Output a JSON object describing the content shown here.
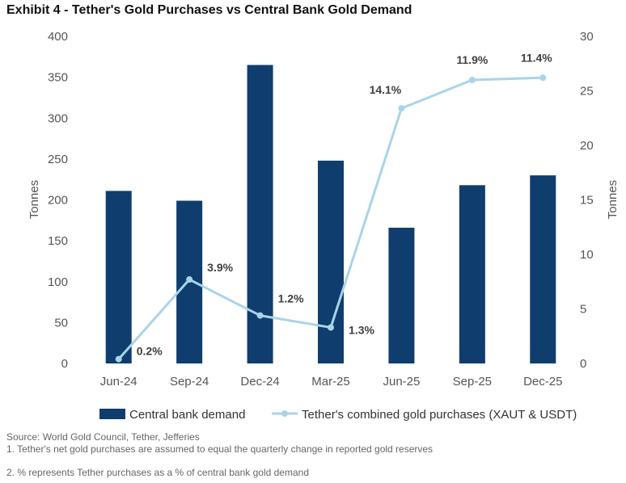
{
  "title": "Exhibit 4 - Tether's Gold Purchases vs Central Bank Gold Demand",
  "notes": {
    "source": "Source: World Gold Council, Tether, Jefferies",
    "note1": "1. Tether's net gold purchases are assumed to equal the quarterly change in reported gold reserves",
    "note2": "2. % represents Tether purchases as a % of central bank gold demand"
  },
  "colors": {
    "bar": "#0f3d6e",
    "line": "#a9d4e8"
  },
  "chart_data": {
    "type": "bar",
    "categories": [
      "Jun-24",
      "Sep-24",
      "Dec-24",
      "Mar-25",
      "Jun-25",
      "Sep-25",
      "Dec-25"
    ],
    "series": [
      {
        "name": "Central bank demand",
        "type": "bar",
        "axis": "left",
        "values": [
          211,
          199,
          365,
          248,
          166,
          218,
          230
        ]
      },
      {
        "name": "Tether's combined gold purchases (XAUT & USDT)",
        "type": "line",
        "axis": "right",
        "values": [
          0.4,
          7.7,
          4.4,
          3.3,
          23.4,
          26.0,
          26.2
        ]
      }
    ],
    "point_labels": [
      "0.2%",
      "3.9%",
      "1.2%",
      "1.3%",
      "14.1%",
      "11.9%",
      "11.4%"
    ],
    "ylabel": "Tonnes",
    "y2label": "Tonnes",
    "ylim": [
      0,
      400
    ],
    "y2lim": [
      0,
      30
    ],
    "yticks": [
      "0",
      "50",
      "100",
      "150",
      "200",
      "250",
      "300",
      "350",
      "400"
    ],
    "y2ticks": [
      "0",
      "5",
      "10",
      "15",
      "20",
      "25",
      "30"
    ],
    "grid": false,
    "legend_position": "bottom"
  }
}
